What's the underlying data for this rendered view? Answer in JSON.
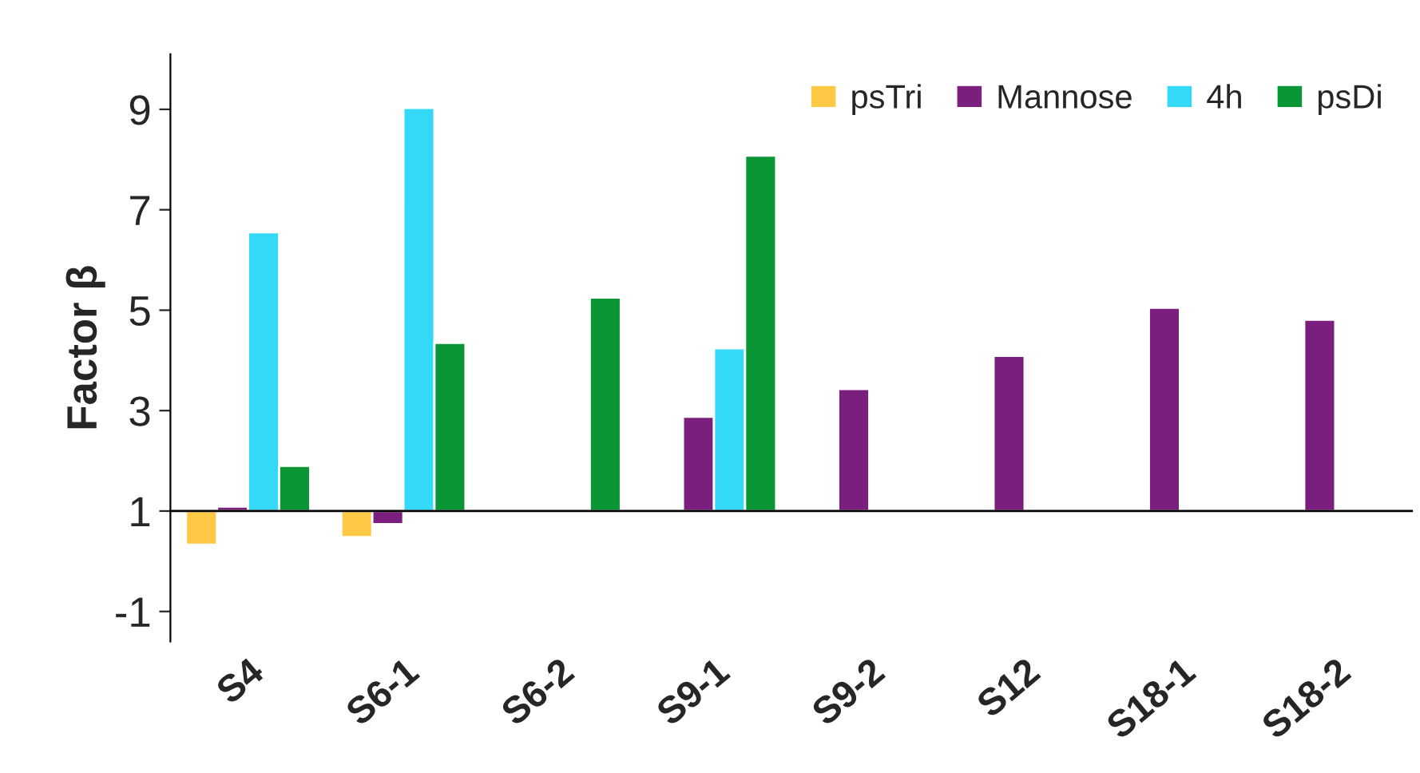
{
  "chart_data": {
    "type": "bar",
    "ylabel": "Factor β",
    "categories": [
      "S4",
      "S6-1",
      "S6-2",
      "S9-1",
      "S9-2",
      "S12",
      "S18-1",
      "S18-2"
    ],
    "series": [
      {
        "name": "psTri",
        "color": "#ffc845",
        "base": [
          1,
          1,
          null,
          null,
          null,
          null,
          null,
          null
        ],
        "values": [
          -0.67,
          -0.52,
          null,
          null,
          null,
          null,
          null,
          null
        ]
      },
      {
        "name": "Mannose",
        "color": "#7b1f7f",
        "base": [
          1,
          1,
          null,
          1,
          1,
          1,
          1,
          1
        ],
        "values": [
          0.09,
          -0.26,
          null,
          1.88,
          2.43,
          3.09,
          4.05,
          3.81
        ]
      },
      {
        "name": "4h",
        "color": "#33d9f7",
        "base": [
          1,
          1,
          null,
          1,
          null,
          null,
          null,
          null
        ],
        "values": [
          5.55,
          8.03,
          null,
          3.24,
          null,
          null,
          null,
          null
        ]
      },
      {
        "name": "psDi",
        "color": "#0a9634",
        "base": [
          1,
          1,
          1,
          1,
          null,
          null,
          null,
          null
        ],
        "values": [
          0.9,
          3.35,
          4.25,
          7.08,
          null,
          null,
          null,
          null
        ]
      }
    ],
    "ref_lines": [
      {
        "axis": "y",
        "value": 1,
        "color": "#000000"
      }
    ],
    "ylim": [
      -1.6,
      10.1
    ],
    "yticks": [
      -1,
      1,
      3,
      5,
      7,
      9
    ],
    "grid": false,
    "legend": "top right"
  }
}
